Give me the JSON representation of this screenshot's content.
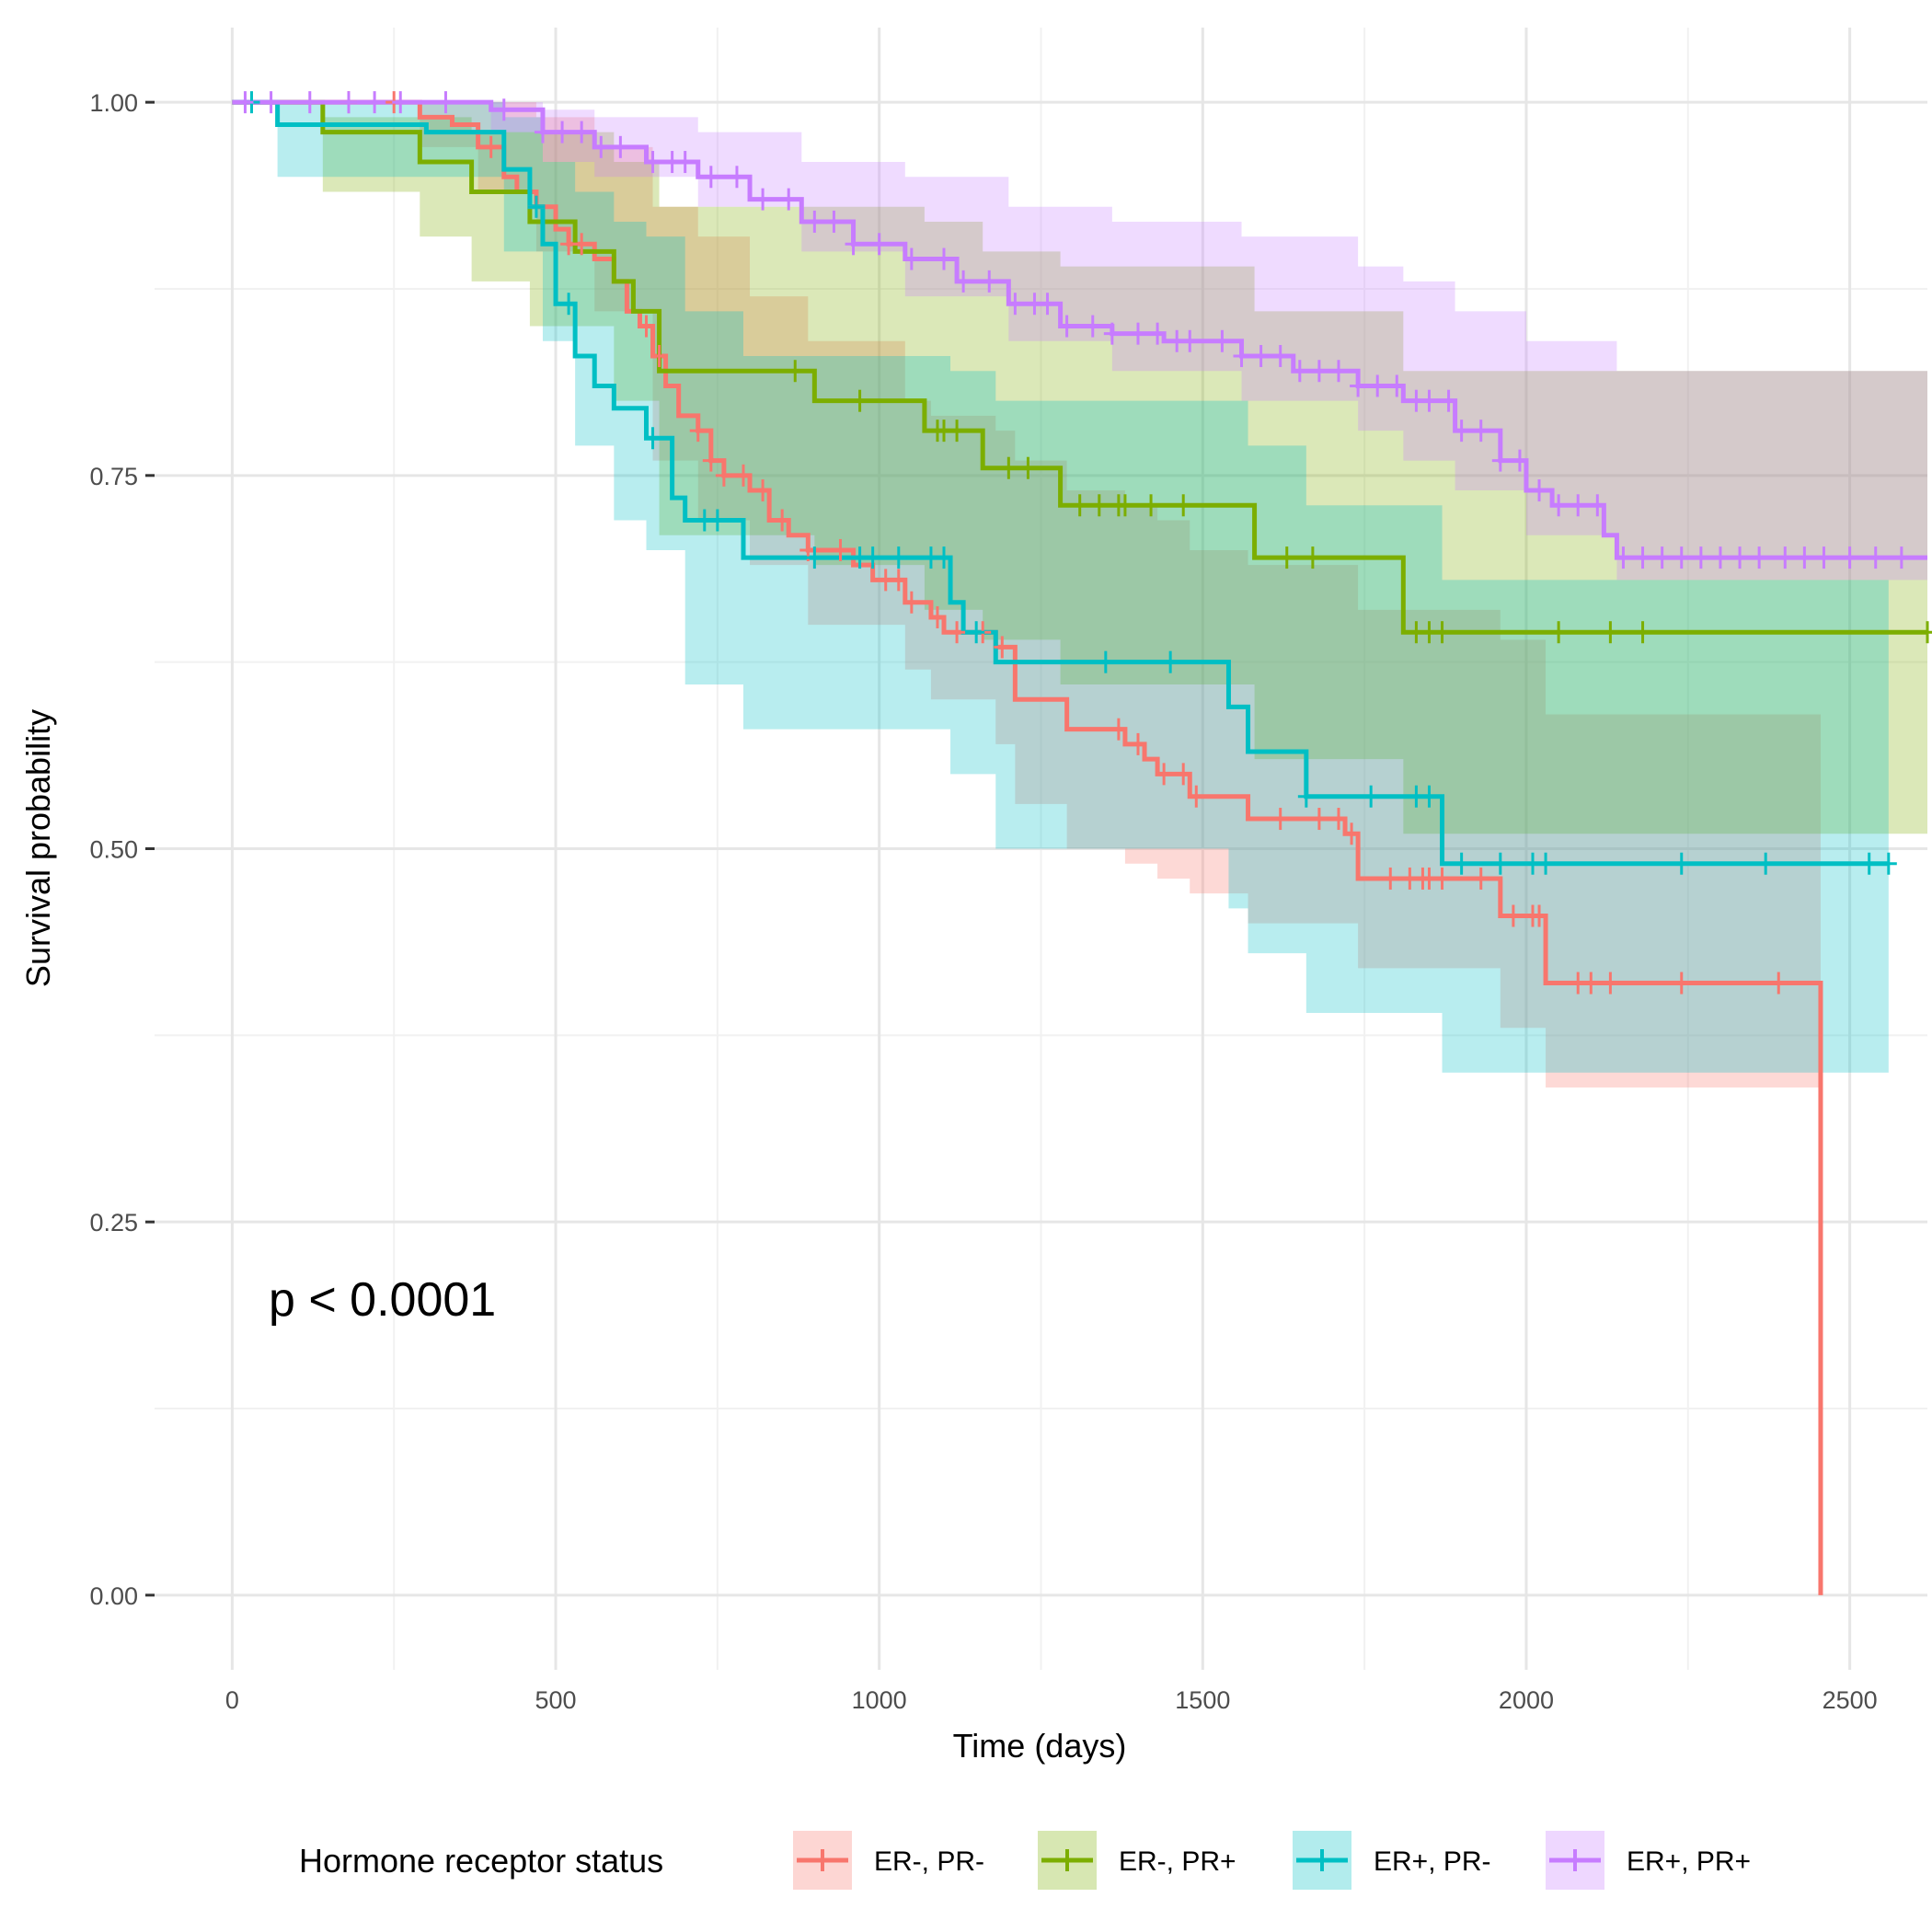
{
  "chart_data": {
    "type": "line",
    "subtype": "kaplan-meier survival curves with confidence bands",
    "xlabel": "Time (days)",
    "ylabel": "Survival probability",
    "xlim": [
      -120,
      2620
    ],
    "ylim": [
      -0.05,
      1.05
    ],
    "x_ticks": [
      0,
      500,
      1000,
      1500,
      2000,
      2500
    ],
    "y_ticks": [
      0.0,
      0.25,
      0.5,
      0.75,
      1.0
    ],
    "x_tick_labels": [
      "0",
      "500",
      "1000",
      "1500",
      "2000",
      "2500"
    ],
    "y_tick_labels": [
      "0.00",
      "0.25",
      "0.50",
      "0.75",
      "1.00"
    ],
    "grid": true,
    "legend_title": "Hormone receptor status",
    "legend_position": "bottom",
    "annotation": "p < 0.0001",
    "series": [
      {
        "name": "ER-, PR-",
        "color": "#F8766D",
        "steps": [
          [
            0,
            1.0
          ],
          [
            290,
            0.99
          ],
          [
            340,
            0.985
          ],
          [
            380,
            0.97
          ],
          [
            420,
            0.95
          ],
          [
            440,
            0.94
          ],
          [
            470,
            0.93
          ],
          [
            500,
            0.915
          ],
          [
            520,
            0.905
          ],
          [
            560,
            0.895
          ],
          [
            590,
            0.88
          ],
          [
            610,
            0.86
          ],
          [
            630,
            0.85
          ],
          [
            650,
            0.83
          ],
          [
            670,
            0.81
          ],
          [
            690,
            0.79
          ],
          [
            720,
            0.78
          ],
          [
            740,
            0.76
          ],
          [
            760,
            0.75
          ],
          [
            800,
            0.74
          ],
          [
            830,
            0.72
          ],
          [
            860,
            0.71
          ],
          [
            890,
            0.7
          ],
          [
            960,
            0.69
          ],
          [
            990,
            0.68
          ],
          [
            1040,
            0.665
          ],
          [
            1080,
            0.655
          ],
          [
            1100,
            0.645
          ],
          [
            1180,
            0.635
          ],
          [
            1210,
            0.6
          ],
          [
            1290,
            0.58
          ],
          [
            1380,
            0.57
          ],
          [
            1410,
            0.56
          ],
          [
            1430,
            0.55
          ],
          [
            1480,
            0.535
          ],
          [
            1570,
            0.52
          ],
          [
            1720,
            0.51
          ],
          [
            1740,
            0.48
          ],
          [
            1960,
            0.455
          ],
          [
            2030,
            0.41
          ],
          [
            2455,
            0.0
          ]
        ],
        "censor": [
          180,
          250,
          400,
          470,
          520,
          540,
          640,
          660,
          720,
          740,
          760,
          790,
          820,
          850,
          890,
          940,
          1010,
          1030,
          1050,
          1090,
          1120,
          1160,
          1190,
          1370,
          1400,
          1440,
          1470,
          1490,
          1620,
          1680,
          1710,
          1730,
          1790,
          1820,
          1840,
          1850,
          1870,
          1930,
          1980,
          2010,
          2020,
          2080,
          2100,
          2130,
          2240,
          2390
        ],
        "band": [
          [
            0,
            1.0,
            1.0
          ],
          [
            290,
            1.0,
            0.97
          ],
          [
            380,
            1.0,
            0.94
          ],
          [
            470,
            0.99,
            0.9
          ],
          [
            560,
            0.97,
            0.86
          ],
          [
            650,
            0.93,
            0.76
          ],
          [
            720,
            0.91,
            0.72
          ],
          [
            800,
            0.87,
            0.69
          ],
          [
            890,
            0.84,
            0.65
          ],
          [
            1040,
            0.8,
            0.62
          ],
          [
            1080,
            0.79,
            0.6
          ],
          [
            1180,
            0.78,
            0.57
          ],
          [
            1210,
            0.76,
            0.53
          ],
          [
            1290,
            0.74,
            0.5
          ],
          [
            1380,
            0.73,
            0.49
          ],
          [
            1430,
            0.72,
            0.48
          ],
          [
            1480,
            0.7,
            0.47
          ],
          [
            1570,
            0.69,
            0.45
          ],
          [
            1740,
            0.66,
            0.42
          ],
          [
            1960,
            0.64,
            0.38
          ],
          [
            2030,
            0.59,
            0.34
          ],
          [
            2455,
            0.59,
            0.3
          ]
        ]
      },
      {
        "name": "ER-, PR+",
        "color": "#7CAE00",
        "steps": [
          [
            0,
            1.0
          ],
          [
            140,
            0.98
          ],
          [
            290,
            0.96
          ],
          [
            370,
            0.94
          ],
          [
            460,
            0.92
          ],
          [
            530,
            0.9
          ],
          [
            590,
            0.88
          ],
          [
            620,
            0.86
          ],
          [
            660,
            0.82
          ],
          [
            900,
            0.8
          ],
          [
            1070,
            0.78
          ],
          [
            1160,
            0.755
          ],
          [
            1280,
            0.73
          ],
          [
            1580,
            0.695
          ],
          [
            1810,
            0.645
          ],
          [
            2620,
            0.645
          ]
        ],
        "censor": [
          870,
          970,
          1090,
          1100,
          1120,
          1200,
          1230,
          1310,
          1340,
          1370,
          1380,
          1420,
          1470,
          1630,
          1670,
          1830,
          1850,
          1870,
          2050,
          2130,
          2180,
          2620
        ],
        "band": [
          [
            0,
            1.0,
            1.0
          ],
          [
            140,
            0.99,
            0.94
          ],
          [
            290,
            0.99,
            0.91
          ],
          [
            370,
            0.98,
            0.88
          ],
          [
            460,
            0.98,
            0.85
          ],
          [
            590,
            0.96,
            0.8
          ],
          [
            660,
            0.93,
            0.71
          ],
          [
            900,
            0.93,
            0.69
          ],
          [
            1070,
            0.92,
            0.66
          ],
          [
            1160,
            0.9,
            0.64
          ],
          [
            1280,
            0.89,
            0.61
          ],
          [
            1580,
            0.86,
            0.56
          ],
          [
            1810,
            0.82,
            0.51
          ],
          [
            2620,
            0.82,
            0.51
          ]
        ]
      },
      {
        "name": "ER+, PR-",
        "color": "#00BFC4",
        "steps": [
          [
            0,
            1.0
          ],
          [
            70,
            0.985
          ],
          [
            300,
            0.98
          ],
          [
            420,
            0.955
          ],
          [
            460,
            0.93
          ],
          [
            480,
            0.905
          ],
          [
            500,
            0.865
          ],
          [
            530,
            0.83
          ],
          [
            560,
            0.81
          ],
          [
            590,
            0.795
          ],
          [
            640,
            0.775
          ],
          [
            680,
            0.735
          ],
          [
            700,
            0.72
          ],
          [
            790,
            0.695
          ],
          [
            1110,
            0.665
          ],
          [
            1130,
            0.645
          ],
          [
            1180,
            0.625
          ],
          [
            1540,
            0.595
          ],
          [
            1570,
            0.565
          ],
          [
            1660,
            0.535
          ],
          [
            1870,
            0.49
          ],
          [
            2560,
            0.49
          ]
        ],
        "censor": [
          30,
          470,
          520,
          650,
          730,
          750,
          900,
          970,
          990,
          1030,
          1080,
          1100,
          1150,
          1350,
          1450,
          1660,
          1760,
          1830,
          1850,
          1900,
          1960,
          2010,
          2030,
          2240,
          2370,
          2530,
          2560
        ],
        "band": [
          [
            0,
            1.0,
            1.0
          ],
          [
            70,
            1.0,
            0.95
          ],
          [
            420,
            0.99,
            0.9
          ],
          [
            480,
            0.96,
            0.84
          ],
          [
            530,
            0.94,
            0.77
          ],
          [
            590,
            0.92,
            0.72
          ],
          [
            640,
            0.91,
            0.7
          ],
          [
            700,
            0.86,
            0.61
          ],
          [
            790,
            0.83,
            0.58
          ],
          [
            1110,
            0.82,
            0.55
          ],
          [
            1180,
            0.8,
            0.5
          ],
          [
            1540,
            0.8,
            0.46
          ],
          [
            1570,
            0.77,
            0.43
          ],
          [
            1660,
            0.73,
            0.39
          ],
          [
            1870,
            0.68,
            0.35
          ],
          [
            2560,
            0.68,
            0.35
          ]
        ]
      },
      {
        "name": "ER+, PR+",
        "color": "#C77CFF",
        "steps": [
          [
            0,
            1.0
          ],
          [
            400,
            0.995
          ],
          [
            480,
            0.98
          ],
          [
            560,
            0.97
          ],
          [
            640,
            0.96
          ],
          [
            720,
            0.95
          ],
          [
            800,
            0.935
          ],
          [
            880,
            0.92
          ],
          [
            960,
            0.905
          ],
          [
            1040,
            0.895
          ],
          [
            1120,
            0.88
          ],
          [
            1200,
            0.865
          ],
          [
            1280,
            0.85
          ],
          [
            1360,
            0.845
          ],
          [
            1440,
            0.84
          ],
          [
            1560,
            0.83
          ],
          [
            1640,
            0.82
          ],
          [
            1740,
            0.81
          ],
          [
            1810,
            0.8
          ],
          [
            1890,
            0.78
          ],
          [
            1960,
            0.76
          ],
          [
            2000,
            0.74
          ],
          [
            2040,
            0.73
          ],
          [
            2120,
            0.71
          ],
          [
            2140,
            0.695
          ],
          [
            2620,
            0.695
          ]
        ],
        "censor": [
          20,
          60,
          120,
          180,
          220,
          260,
          330,
          420,
          480,
          510,
          540,
          570,
          600,
          650,
          680,
          700,
          740,
          780,
          820,
          860,
          900,
          930,
          960,
          1000,
          1050,
          1100,
          1130,
          1170,
          1210,
          1240,
          1260,
          1290,
          1330,
          1360,
          1400,
          1430,
          1460,
          1480,
          1530,
          1560,
          1590,
          1620,
          1650,
          1680,
          1710,
          1740,
          1770,
          1800,
          1830,
          1850,
          1880,
          1900,
          1930,
          1960,
          1990,
          2020,
          2050,
          2080,
          2110,
          2150,
          2180,
          2210,
          2240,
          2270,
          2300,
          2330,
          2360,
          2400,
          2430,
          2460,
          2500,
          2540,
          2580
        ],
        "band": [
          [
            0,
            1.0,
            1.0
          ],
          [
            400,
            1.0,
            0.98
          ],
          [
            480,
            0.995,
            0.96
          ],
          [
            560,
            0.99,
            0.95
          ],
          [
            720,
            0.98,
            0.93
          ],
          [
            880,
            0.96,
            0.9
          ],
          [
            1040,
            0.95,
            0.87
          ],
          [
            1200,
            0.93,
            0.84
          ],
          [
            1360,
            0.92,
            0.82
          ],
          [
            1560,
            0.91,
            0.8
          ],
          [
            1740,
            0.89,
            0.78
          ],
          [
            1810,
            0.88,
            0.76
          ],
          [
            1890,
            0.86,
            0.74
          ],
          [
            2000,
            0.84,
            0.71
          ],
          [
            2140,
            0.82,
            0.68
          ],
          [
            2620,
            0.82,
            0.67
          ]
        ]
      }
    ]
  }
}
